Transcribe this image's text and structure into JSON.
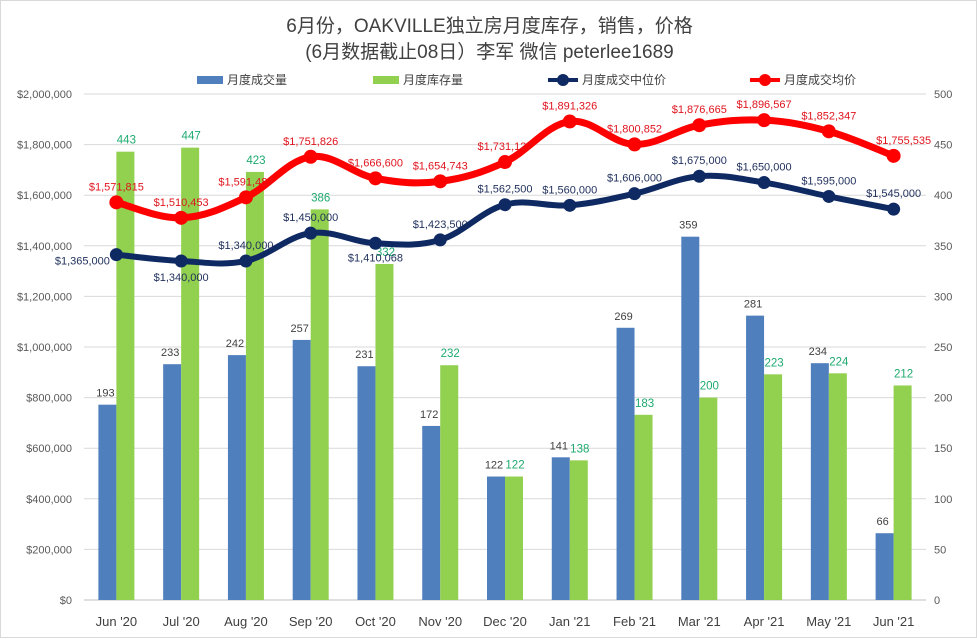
{
  "chart_data": {
    "type": "bar+line",
    "title": "6月份，OAKVILLE独立房月度库存，销售，价格",
    "subtitle": "(6月数据截止08日）李军 微信 peterlee1689",
    "categories": [
      "Jun '20",
      "Jul '20",
      "Aug '20",
      "Sep '20",
      "Oct '20",
      "Nov '20",
      "Dec '20",
      "Jan '21",
      "Feb '21",
      "Mar '21",
      "Apr '21",
      "May '21",
      "Jun '21"
    ],
    "left_axis": {
      "label": "",
      "ylim": [
        0,
        2000000
      ],
      "ticks": [
        "$0",
        "$200,000",
        "$400,000",
        "$600,000",
        "$800,000",
        "$1,000,000",
        "$1,200,000",
        "$1,400,000",
        "$1,600,000",
        "$1,800,000",
        "$2,000,000"
      ]
    },
    "right_axis": {
      "label": "",
      "ylim": [
        0,
        500
      ],
      "ticks": [
        "0",
        "50",
        "100",
        "150",
        "200",
        "250",
        "300",
        "350",
        "400",
        "450",
        "500"
      ]
    },
    "grid": true,
    "legend_position": "top",
    "series": [
      {
        "name": "月度成交量",
        "type": "bar",
        "axis": "right",
        "color": "#4f7fbd",
        "values": [
          193,
          233,
          242,
          257,
          231,
          172,
          122,
          141,
          269,
          359,
          281,
          234,
          66
        ],
        "labels": [
          "193",
          "233",
          "242",
          "257",
          "231",
          "172",
          "122",
          "141",
          "269",
          "359",
          "281",
          "234",
          "66"
        ]
      },
      {
        "name": "月度库存量",
        "type": "bar",
        "axis": "right",
        "color": "#92d050",
        "values": [
          443,
          447,
          423,
          386,
          332,
          232,
          122,
          138,
          183,
          200,
          223,
          224,
          212
        ],
        "labels": [
          "443",
          "447",
          "423",
          "386",
          "332",
          "232",
          "122",
          "138",
          "183",
          "200",
          "223",
          "224",
          "212"
        ]
      },
      {
        "name": "月度成交中位价",
        "type": "line",
        "axis": "left",
        "color": "#0f2a63",
        "values": [
          1365000,
          1340000,
          1340000,
          1450000,
          1410068,
          1423500,
          1562500,
          1560000,
          1606000,
          1675000,
          1650000,
          1595000,
          1545000
        ],
        "labels": [
          "$1,365,000",
          "$1,340,000",
          "$1,340,000",
          "$1,450,000",
          "$1,410,068",
          "$1,423,500",
          "$1,562,500",
          "$1,560,000",
          "$1,606,000",
          "$1,675,000",
          "$1,650,000",
          "$1,595,000",
          "$1,545,000"
        ]
      },
      {
        "name": "月度成交均价",
        "type": "line",
        "axis": "left",
        "color": "#ff0000",
        "values": [
          1571815,
          1510453,
          1591487,
          1751826,
          1666600,
          1654743,
          1731127,
          1891326,
          1800852,
          1876665,
          1896567,
          1852347,
          1755535
        ],
        "labels": [
          "$1,571,815",
          "$1,510,453",
          "$1,591,487",
          "$1,751,826",
          "$1,666,600",
          "$1,654,743",
          "$1,731,127",
          "$1,891,326",
          "$1,800,852",
          "$1,876,665",
          "$1,896,567",
          "$1,852,347",
          "$1,755,535"
        ]
      }
    ]
  }
}
